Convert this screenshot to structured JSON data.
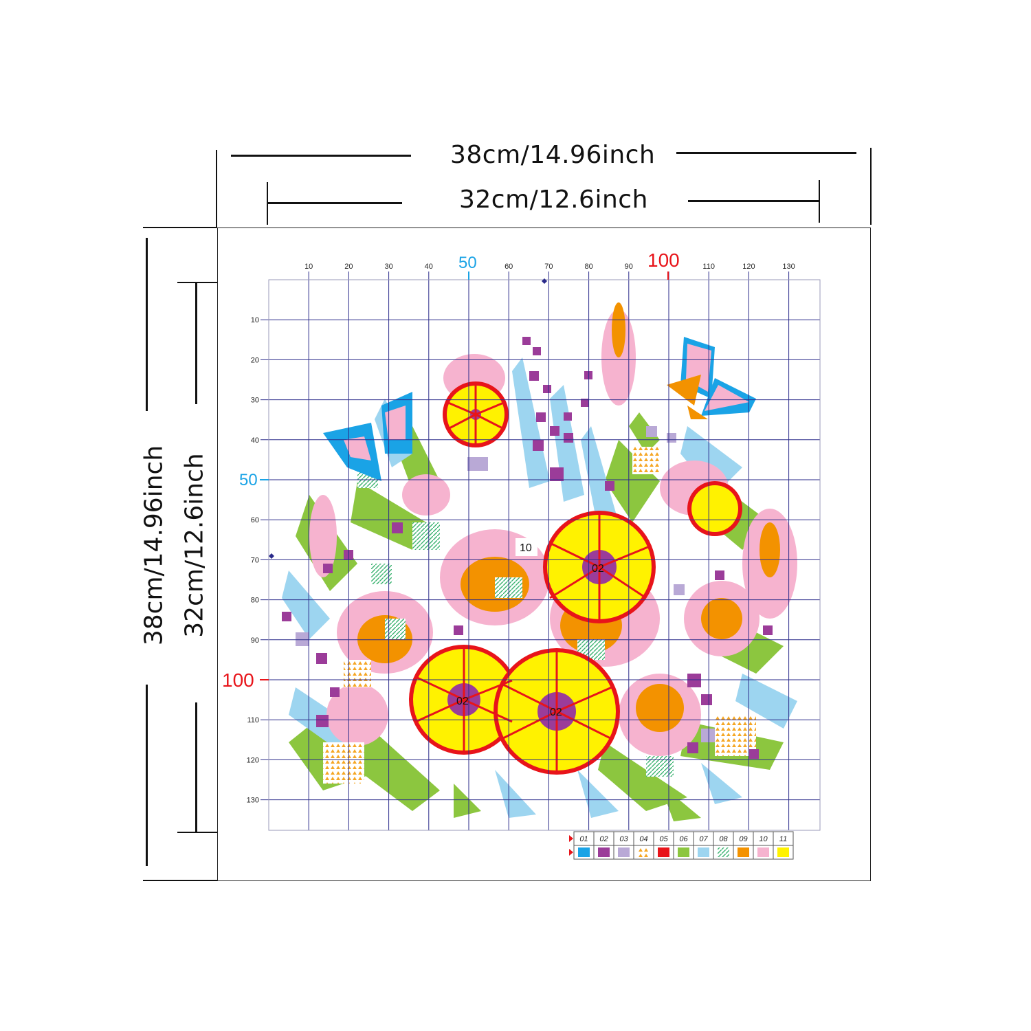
{
  "dimensions": {
    "outer_width": "38cm/14.96inch",
    "inner_width": "32cm/12.6inch",
    "outer_height": "38cm/14.96inch",
    "inner_height": "32cm/12.6inch"
  },
  "grid": {
    "x_ticks": [
      "10",
      "20",
      "30",
      "40",
      "50",
      "60",
      "70",
      "80",
      "90",
      "100",
      "110",
      "120",
      "130"
    ],
    "y_ticks": [
      "10",
      "20",
      "30",
      "40",
      "50",
      "60",
      "70",
      "80",
      "90",
      "100",
      "110",
      "120",
      "130"
    ],
    "highlight_50": "50",
    "highlight_100": "100",
    "highlight_50_color": "#1aa3e6",
    "highlight_100_color": "#e8141a"
  },
  "flower_labels": {
    "top_label": "10",
    "center_1": "02",
    "center_2": "02",
    "center_3": "02"
  },
  "legend": {
    "codes": [
      "01",
      "02",
      "03",
      "04",
      "05",
      "06",
      "07",
      "08",
      "09",
      "10",
      "11"
    ],
    "colors": [
      "#1aa3e6",
      "#9b3c99",
      "#b9a9d6",
      "#f5a623",
      "#e8141a",
      "#8cc63f",
      "#9dd5f0",
      "#3cb371",
      "#f39200",
      "#f6b3cf",
      "#fff200"
    ]
  }
}
